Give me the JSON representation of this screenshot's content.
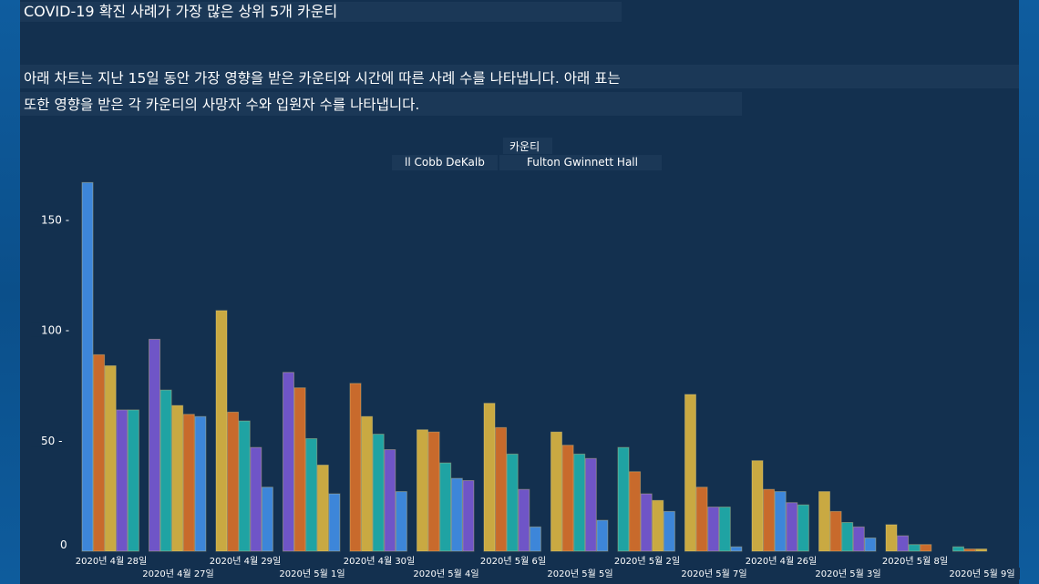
{
  "title": "COVID-19 확진 사례가 가장 많은 상위 5개 카운티",
  "description": {
    "line1": "아래 차트는 지난 15일 동안 가장 영향을 받은 카운티와 시간에 따른 사례 수를 나타냅니다. 아래 표는",
    "line2": "또한 영향을 받은 각 카운티의 사망자 수와 입원자 수를 나타냅니다."
  },
  "legend": {
    "title": "카운티",
    "text_a": "ll Cobb DeKalb",
    "text_b": "Fulton Gwinnett Hall"
  },
  "chart_data": {
    "type": "bar",
    "title": "",
    "xlabel": "",
    "ylabel": "",
    "ylim": [
      0,
      170
    ],
    "yticks": [
      0,
      50,
      100,
      150
    ],
    "categories": [
      "2020년 4월 28일",
      "2020년 4월 27일",
      "2020년 4월 29일",
      "2020년 5월 1일",
      "2020년 4월 30일",
      "2020년 5월 4일",
      "2020년 5월 6일",
      "2020년 5월 5일",
      "2020년 5월 2일",
      "2020년 5월 7일",
      "2020년 4월 26일",
      "2020년 5월 3일",
      "2020년 5월 8일",
      "2020년 5월 9일"
    ],
    "bars": [
      [
        {
          "color": "#3d86d9",
          "value": 167
        },
        {
          "color": "#c86a2c",
          "value": 89
        },
        {
          "color": "#c9a942",
          "value": 84
        },
        {
          "color": "#6f55c7",
          "value": 64
        },
        {
          "color": "#1fa3a3",
          "value": 64
        }
      ],
      [
        {
          "color": "#6f55c7",
          "value": 96
        },
        {
          "color": "#1fa3a3",
          "value": 73
        },
        {
          "color": "#c9a942",
          "value": 66
        },
        {
          "color": "#c86a2c",
          "value": 62
        },
        {
          "color": "#3d86d9",
          "value": 61
        }
      ],
      [
        {
          "color": "#c9a942",
          "value": 109
        },
        {
          "color": "#c86a2c",
          "value": 63
        },
        {
          "color": "#1fa3a3",
          "value": 59
        },
        {
          "color": "#6f55c7",
          "value": 47
        },
        {
          "color": "#3d86d9",
          "value": 29
        }
      ],
      [
        {
          "color": "#6f55c7",
          "value": 81
        },
        {
          "color": "#c86a2c",
          "value": 74
        },
        {
          "color": "#1fa3a3",
          "value": 51
        },
        {
          "color": "#c9a942",
          "value": 39
        },
        {
          "color": "#3d86d9",
          "value": 26
        }
      ],
      [
        {
          "color": "#c86a2c",
          "value": 76
        },
        {
          "color": "#c9a942",
          "value": 61
        },
        {
          "color": "#1fa3a3",
          "value": 53
        },
        {
          "color": "#6f55c7",
          "value": 46
        },
        {
          "color": "#3d86d9",
          "value": 27
        }
      ],
      [
        {
          "color": "#c9a942",
          "value": 55
        },
        {
          "color": "#c86a2c",
          "value": 54
        },
        {
          "color": "#1fa3a3",
          "value": 40
        },
        {
          "color": "#3d86d9",
          "value": 33
        },
        {
          "color": "#6f55c7",
          "value": 32
        }
      ],
      [
        {
          "color": "#c9a942",
          "value": 67
        },
        {
          "color": "#c86a2c",
          "value": 56
        },
        {
          "color": "#1fa3a3",
          "value": 44
        },
        {
          "color": "#6f55c7",
          "value": 28
        },
        {
          "color": "#3d86d9",
          "value": 11
        }
      ],
      [
        {
          "color": "#c9a942",
          "value": 54
        },
        {
          "color": "#c86a2c",
          "value": 48
        },
        {
          "color": "#1fa3a3",
          "value": 44
        },
        {
          "color": "#6f55c7",
          "value": 42
        },
        {
          "color": "#3d86d9",
          "value": 14
        }
      ],
      [
        {
          "color": "#1fa3a3",
          "value": 47
        },
        {
          "color": "#c86a2c",
          "value": 36
        },
        {
          "color": "#6f55c7",
          "value": 26
        },
        {
          "color": "#c9a942",
          "value": 23
        },
        {
          "color": "#3d86d9",
          "value": 18
        }
      ],
      [
        {
          "color": "#c9a942",
          "value": 71
        },
        {
          "color": "#c86a2c",
          "value": 29
        },
        {
          "color": "#6f55c7",
          "value": 20
        },
        {
          "color": "#1fa3a3",
          "value": 20
        },
        {
          "color": "#3d86d9",
          "value": 2
        }
      ],
      [
        {
          "color": "#c9a942",
          "value": 41
        },
        {
          "color": "#c86a2c",
          "value": 28
        },
        {
          "color": "#3d86d9",
          "value": 27
        },
        {
          "color": "#6f55c7",
          "value": 22
        },
        {
          "color": "#1fa3a3",
          "value": 21
        }
      ],
      [
        {
          "color": "#c9a942",
          "value": 27
        },
        {
          "color": "#c86a2c",
          "value": 18
        },
        {
          "color": "#1fa3a3",
          "value": 13
        },
        {
          "color": "#6f55c7",
          "value": 11
        },
        {
          "color": "#3d86d9",
          "value": 6
        }
      ],
      [
        {
          "color": "#c9a942",
          "value": 12
        },
        {
          "color": "#6f55c7",
          "value": 7
        },
        {
          "color": "#1fa3a3",
          "value": 3
        },
        {
          "color": "#c86a2c",
          "value": 3
        }
      ],
      [
        {
          "color": "#1fa3a3",
          "value": 2
        },
        {
          "color": "#c86a2c",
          "value": 1
        },
        {
          "color": "#c9a942",
          "value": 1
        }
      ]
    ]
  }
}
